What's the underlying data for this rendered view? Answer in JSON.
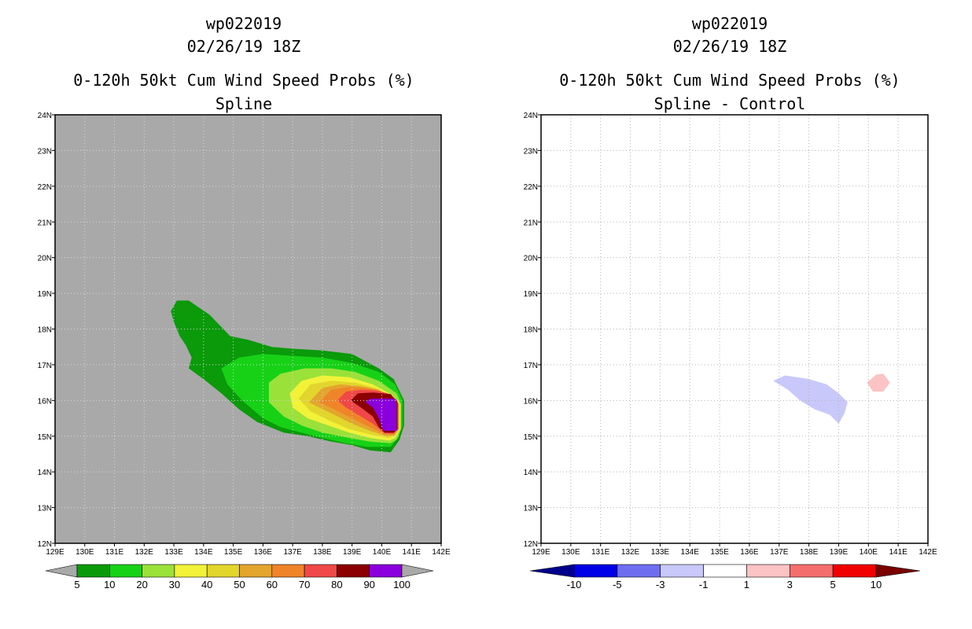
{
  "chart_data": [
    {
      "type": "heatmap",
      "panel": "left",
      "title_lines": [
        "wp022019",
        "02/26/19 18Z",
        "0-120h 50kt Cum Wind Speed Probs (%)",
        "Spline"
      ],
      "xlabel": "",
      "ylabel": "",
      "xlim": [
        129,
        142
      ],
      "ylim": [
        12,
        24
      ],
      "xticks": [
        129,
        130,
        131,
        132,
        133,
        134,
        135,
        136,
        137,
        138,
        139,
        140,
        141,
        142
      ],
      "xtick_labels": [
        "129E",
        "130E",
        "131E",
        "132E",
        "133E",
        "134E",
        "135E",
        "136E",
        "137E",
        "138E",
        "139E",
        "140E",
        "141E",
        "142E"
      ],
      "yticks": [
        12,
        13,
        14,
        15,
        16,
        17,
        18,
        19,
        20,
        21,
        22,
        23,
        24
      ],
      "ytick_labels": [
        "12N",
        "13N",
        "14N",
        "15N",
        "16N",
        "17N",
        "18N",
        "19N",
        "20N",
        "21N",
        "22N",
        "23N",
        "24N"
      ],
      "background_color": "#a9a9a9",
      "grid": true,
      "contours": [
        {
          "level": 5,
          "color": "#0a9a0a",
          "points": [
            [
              132.9,
              18.5
            ],
            [
              133.1,
              18.8
            ],
            [
              133.5,
              18.8
            ],
            [
              134.2,
              18.4
            ],
            [
              134.9,
              17.8
            ],
            [
              135.5,
              17.7
            ],
            [
              136.3,
              17.5
            ],
            [
              137.0,
              17.45
            ],
            [
              138.0,
              17.4
            ],
            [
              139.0,
              17.3
            ],
            [
              139.9,
              16.9
            ],
            [
              140.4,
              16.6
            ],
            [
              140.75,
              16.0
            ],
            [
              140.75,
              15.3
            ],
            [
              140.6,
              14.9
            ],
            [
              140.3,
              14.55
            ],
            [
              139.6,
              14.6
            ],
            [
              139.0,
              14.75
            ],
            [
              138.3,
              14.85
            ],
            [
              137.5,
              15.0
            ],
            [
              136.7,
              15.1
            ],
            [
              135.8,
              15.4
            ],
            [
              135.2,
              15.75
            ],
            [
              134.6,
              16.2
            ],
            [
              134.0,
              16.6
            ],
            [
              133.5,
              16.9
            ],
            [
              133.6,
              17.2
            ],
            [
              133.4,
              17.55
            ],
            [
              133.2,
              17.8
            ],
            [
              133.0,
              18.2
            ]
          ]
        },
        {
          "level": 10,
          "color": "#17d117",
          "points": [
            [
              134.6,
              16.9
            ],
            [
              135.2,
              17.2
            ],
            [
              136.0,
              17.3
            ],
            [
              137.0,
              17.25
            ],
            [
              138.0,
              17.2
            ],
            [
              139.0,
              17.05
            ],
            [
              139.9,
              16.8
            ],
            [
              140.45,
              16.45
            ],
            [
              140.7,
              16.0
            ],
            [
              140.7,
              15.3
            ],
            [
              140.55,
              14.95
            ],
            [
              140.3,
              14.7
            ],
            [
              139.5,
              14.7
            ],
            [
              138.8,
              14.8
            ],
            [
              138.0,
              14.95
            ],
            [
              137.3,
              15.1
            ],
            [
              136.6,
              15.25
            ],
            [
              136.0,
              15.5
            ],
            [
              135.3,
              16.0
            ],
            [
              134.8,
              16.45
            ]
          ]
        },
        {
          "level": 20,
          "color": "#9ae13a",
          "points": [
            [
              136.2,
              16.5
            ],
            [
              136.6,
              16.75
            ],
            [
              137.4,
              16.9
            ],
            [
              138.3,
              16.9
            ],
            [
              139.1,
              16.8
            ],
            [
              139.9,
              16.55
            ],
            [
              140.5,
              16.2
            ],
            [
              140.65,
              15.9
            ],
            [
              140.65,
              15.2
            ],
            [
              140.5,
              14.9
            ],
            [
              140.3,
              14.8
            ],
            [
              139.6,
              14.85
            ],
            [
              138.9,
              14.95
            ],
            [
              138.0,
              15.1
            ],
            [
              137.3,
              15.3
            ],
            [
              136.7,
              15.55
            ],
            [
              136.2,
              15.95
            ]
          ]
        },
        {
          "level": 30,
          "color": "#f2f238",
          "points": [
            [
              136.9,
              16.2
            ],
            [
              137.3,
              16.55
            ],
            [
              138.0,
              16.7
            ],
            [
              138.9,
              16.65
            ],
            [
              139.7,
              16.45
            ],
            [
              140.35,
              16.15
            ],
            [
              140.62,
              15.9
            ],
            [
              140.62,
              15.2
            ],
            [
              140.45,
              14.95
            ],
            [
              140.25,
              14.88
            ],
            [
              139.6,
              14.95
            ],
            [
              138.9,
              15.1
            ],
            [
              138.2,
              15.3
            ],
            [
              137.5,
              15.5
            ],
            [
              137.0,
              15.8
            ]
          ]
        },
        {
          "level": 40,
          "color": "#e2d52c",
          "points": [
            [
              137.2,
              16.05
            ],
            [
              137.6,
              16.45
            ],
            [
              138.3,
              16.55
            ],
            [
              139.1,
              16.5
            ],
            [
              139.8,
              16.35
            ],
            [
              140.4,
              16.1
            ],
            [
              140.6,
              15.9
            ],
            [
              140.6,
              15.2
            ],
            [
              140.45,
              15.0
            ],
            [
              140.2,
              14.95
            ],
            [
              139.6,
              15.05
            ],
            [
              138.9,
              15.2
            ],
            [
              138.2,
              15.45
            ],
            [
              137.6,
              15.7
            ]
          ]
        },
        {
          "level": 50,
          "color": "#e3a52e",
          "points": [
            [
              137.55,
              15.95
            ],
            [
              138.0,
              16.35
            ],
            [
              138.6,
              16.45
            ],
            [
              139.3,
              16.4
            ],
            [
              139.9,
              16.3
            ],
            [
              140.4,
              16.08
            ],
            [
              140.58,
              15.9
            ],
            [
              140.58,
              15.2
            ],
            [
              140.42,
              15.02
            ],
            [
              140.15,
              15.0
            ],
            [
              139.6,
              15.15
            ],
            [
              139.0,
              15.35
            ],
            [
              138.4,
              15.6
            ],
            [
              137.9,
              15.8
            ]
          ]
        },
        {
          "level": 60,
          "color": "#ef8528",
          "points": [
            [
              137.9,
              15.95
            ],
            [
              138.3,
              16.3
            ],
            [
              138.9,
              16.38
            ],
            [
              139.5,
              16.35
            ],
            [
              140.0,
              16.25
            ],
            [
              140.45,
              16.05
            ],
            [
              140.56,
              15.9
            ],
            [
              140.56,
              15.2
            ],
            [
              140.4,
              15.05
            ],
            [
              140.1,
              15.05
            ],
            [
              139.6,
              15.25
            ],
            [
              139.0,
              15.5
            ],
            [
              138.4,
              15.75
            ]
          ]
        },
        {
          "level": 70,
          "color": "#f04848",
          "points": [
            [
              138.5,
              16.0
            ],
            [
              138.8,
              16.25
            ],
            [
              139.3,
              16.3
            ],
            [
              139.8,
              16.28
            ],
            [
              140.2,
              16.2
            ],
            [
              140.5,
              16.02
            ],
            [
              140.55,
              15.9
            ],
            [
              140.55,
              15.2
            ],
            [
              140.4,
              15.07
            ],
            [
              140.1,
              15.08
            ],
            [
              139.7,
              15.35
            ],
            [
              139.2,
              15.6
            ],
            [
              138.8,
              15.8
            ]
          ]
        },
        {
          "level": 80,
          "color": "#8b0000",
          "points": [
            [
              138.95,
              16.0
            ],
            [
              139.2,
              16.2
            ],
            [
              139.7,
              16.22
            ],
            [
              140.3,
              16.18
            ],
            [
              140.53,
              15.95
            ],
            [
              140.53,
              15.2
            ],
            [
              140.4,
              15.1
            ],
            [
              140.1,
              15.1
            ],
            [
              139.9,
              15.25
            ],
            [
              139.7,
              15.55
            ],
            [
              139.3,
              15.8
            ]
          ]
        },
        {
          "level": 90,
          "color": "#8b0000",
          "points": [
            [
              139.3,
              16.0
            ],
            [
              139.5,
              16.1
            ],
            [
              140.3,
              16.1
            ],
            [
              140.5,
              15.9
            ],
            [
              140.5,
              15.2
            ],
            [
              140.1,
              15.12
            ],
            [
              139.9,
              15.4
            ],
            [
              139.6,
              15.75
            ]
          ]
        },
        {
          "level": 100,
          "color": "#8a00dc",
          "points": [
            [
              139.45,
              15.95
            ],
            [
              139.6,
              16.05
            ],
            [
              140.45,
              16.05
            ],
            [
              140.5,
              15.9
            ],
            [
              140.5,
              15.15
            ],
            [
              140.05,
              15.15
            ],
            [
              139.9,
              15.5
            ],
            [
              139.7,
              15.8
            ]
          ]
        }
      ],
      "colorbar": {
        "levels": [
          "5",
          "10",
          "20",
          "30",
          "40",
          "50",
          "60",
          "70",
          "80",
          "90",
          "100"
        ],
        "colors": [
          "#0a9a0a",
          "#17d117",
          "#9ae13a",
          "#f2f238",
          "#e2d52c",
          "#e3a52e",
          "#ef8528",
          "#f04848",
          "#8b0000",
          "#8a00dc"
        ],
        "under_color": "#a9a9a9",
        "over_color": "#a9a9a9"
      }
    },
    {
      "type": "heatmap",
      "panel": "right",
      "title_lines": [
        "wp022019",
        "02/26/19 18Z",
        "0-120h 50kt Cum Wind Speed Probs (%)",
        "Spline - Control"
      ],
      "xlabel": "",
      "ylabel": "",
      "xlim": [
        129,
        142
      ],
      "ylim": [
        12,
        24
      ],
      "xticks": [
        129,
        130,
        131,
        132,
        133,
        134,
        135,
        136,
        137,
        138,
        139,
        140,
        141,
        142
      ],
      "xtick_labels": [
        "129E",
        "130E",
        "131E",
        "132E",
        "133E",
        "134E",
        "135E",
        "136E",
        "137E",
        "138E",
        "139E",
        "140E",
        "141E",
        "142E"
      ],
      "yticks": [
        12,
        13,
        14,
        15,
        16,
        17,
        18,
        19,
        20,
        21,
        22,
        23,
        24
      ],
      "ytick_labels": [
        "12N",
        "13N",
        "14N",
        "15N",
        "16N",
        "17N",
        "18N",
        "19N",
        "20N",
        "21N",
        "22N",
        "23N",
        "24N"
      ],
      "background_color": "#ffffff",
      "grid": true,
      "contours": [
        {
          "level": -3,
          "color": "#c8c8fa",
          "points": [
            [
              136.8,
              16.55
            ],
            [
              137.2,
              16.7
            ],
            [
              138.0,
              16.6
            ],
            [
              138.6,
              16.45
            ],
            [
              139.0,
              16.2
            ],
            [
              139.3,
              15.95
            ],
            [
              139.2,
              15.65
            ],
            [
              139.0,
              15.35
            ],
            [
              138.7,
              15.6
            ],
            [
              138.2,
              15.75
            ],
            [
              137.7,
              16.0
            ],
            [
              137.3,
              16.3
            ]
          ]
        },
        {
          "level": 3,
          "color": "#fbc3c3",
          "points": [
            [
              139.95,
              16.5
            ],
            [
              140.25,
              16.72
            ],
            [
              140.5,
              16.75
            ],
            [
              140.72,
              16.5
            ],
            [
              140.5,
              16.25
            ],
            [
              140.15,
              16.25
            ]
          ]
        }
      ],
      "colorbar": {
        "levels": [
          "-10",
          "-5",
          "-3",
          "-1",
          "1",
          "3",
          "5",
          "10"
        ],
        "colors": [
          "#0000e6",
          "#6e6ef0",
          "#c8c8fa",
          "#ffffff",
          "#fbc3c3",
          "#f56e6e",
          "#f00000"
        ],
        "under_color": "#00008b",
        "over_color": "#7b0000"
      }
    }
  ]
}
